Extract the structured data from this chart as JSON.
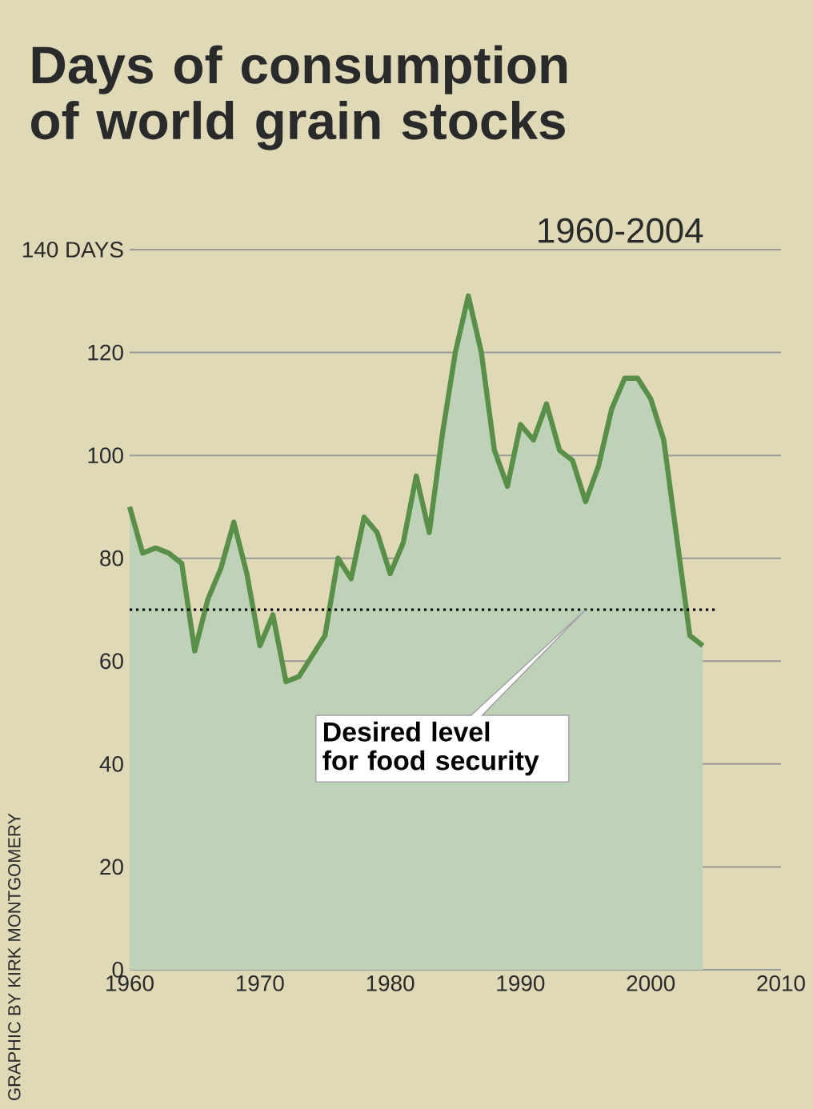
{
  "chart_data": {
    "type": "area",
    "title": "Days of consumption of world grain stocks",
    "subtitle": "1960-2004",
    "x": [
      1960,
      1961,
      1962,
      1963,
      1964,
      1965,
      1966,
      1967,
      1968,
      1969,
      1970,
      1971,
      1972,
      1973,
      1974,
      1975,
      1976,
      1977,
      1978,
      1979,
      1980,
      1981,
      1982,
      1983,
      1984,
      1985,
      1986,
      1987,
      1988,
      1989,
      1990,
      1991,
      1992,
      1993,
      1994,
      1995,
      1996,
      1997,
      1998,
      1999,
      2000,
      2001,
      2002,
      2003,
      2004
    ],
    "series": [
      {
        "color": "#5a8f4a",
        "values": [
          90,
          81,
          82,
          81,
          79,
          62,
          72,
          78,
          87,
          77,
          63,
          69,
          56,
          57,
          61,
          65,
          80,
          76,
          88,
          85,
          77,
          83,
          96,
          85,
          104,
          120,
          131,
          120,
          101,
          94,
          106,
          103,
          110,
          101,
          99,
          91,
          98,
          109,
          115,
          115,
          111,
          103,
          84,
          65,
          63
        ]
      }
    ],
    "xlim": [
      1960,
      2010
    ],
    "xticks": [
      1960,
      1970,
      1980,
      1990,
      2000,
      2010
    ],
    "ylim": [
      0,
      140
    ],
    "yticks": [
      0,
      20,
      40,
      60,
      80,
      100,
      120,
      {
        "value": 140,
        "label": "140 DAYS"
      }
    ],
    "grid": "y",
    "ref_lines": [
      {
        "axis": "y",
        "value": 70,
        "label": "Desired level for food security",
        "color": "#000000",
        "line_style": "dotted"
      }
    ],
    "annotations": [
      "GRAPHIC BY KIRK MONTGOMERY"
    ]
  }
}
